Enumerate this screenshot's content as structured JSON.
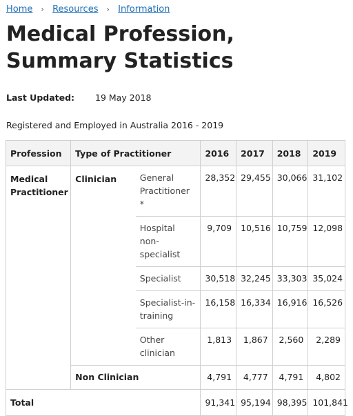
{
  "breadcrumb": {
    "items": [
      "Home",
      "Resources",
      "Information"
    ],
    "separator": "›"
  },
  "page_title": "Medical Profession, Summary Statistics",
  "last_updated": {
    "label": "Last Updated:",
    "value": "19 May 2018"
  },
  "caption": "Registered and Employed in Australia 2016 - 2019",
  "table": {
    "headers": {
      "profession": "Profession",
      "type": "Type of Practitioner",
      "y2016": "2016",
      "y2017": "2017",
      "y2018": "2018",
      "y2019": "2019"
    },
    "profession_medical": "Medical Practitioner",
    "type_clinician": "Clinician",
    "type_non_clinician": "Non Clinician",
    "rows": [
      {
        "sub": "General Practitioner *",
        "v2016": "28,352",
        "v2017": "29,455",
        "v2018": "30,066",
        "v2019": "31,102"
      },
      {
        "sub": "Hospital non-specialist",
        "v2016": "9,709",
        "v2017": "10,516",
        "v2018": "10,759",
        "v2019": "12,098"
      },
      {
        "sub": "Specialist",
        "v2016": "30,518",
        "v2017": "32,245",
        "v2018": "33,303",
        "v2019": "35,024"
      },
      {
        "sub": "Specialist-in-training",
        "v2016": "16,158",
        "v2017": "16,334",
        "v2018": "16,916",
        "v2019": "16,526"
      },
      {
        "sub": "Other clinician",
        "v2016": "1,813",
        "v2017": "1,867",
        "v2018": "2,560",
        "v2019": "2,289"
      }
    ],
    "non_clinician": {
      "v2016": "4,791",
      "v2017": "4,777",
      "v2018": "4,791",
      "v2019": "4,802"
    },
    "total": {
      "label": "Total",
      "v2016": "91,341",
      "v2017": "95,194",
      "v2018": "98,395",
      "v2019": "101,841"
    }
  },
  "colors": {
    "link": "#1d70b8",
    "header_bg": "#f3f3f3",
    "border": "#cfcfcf",
    "text": "#222222"
  }
}
